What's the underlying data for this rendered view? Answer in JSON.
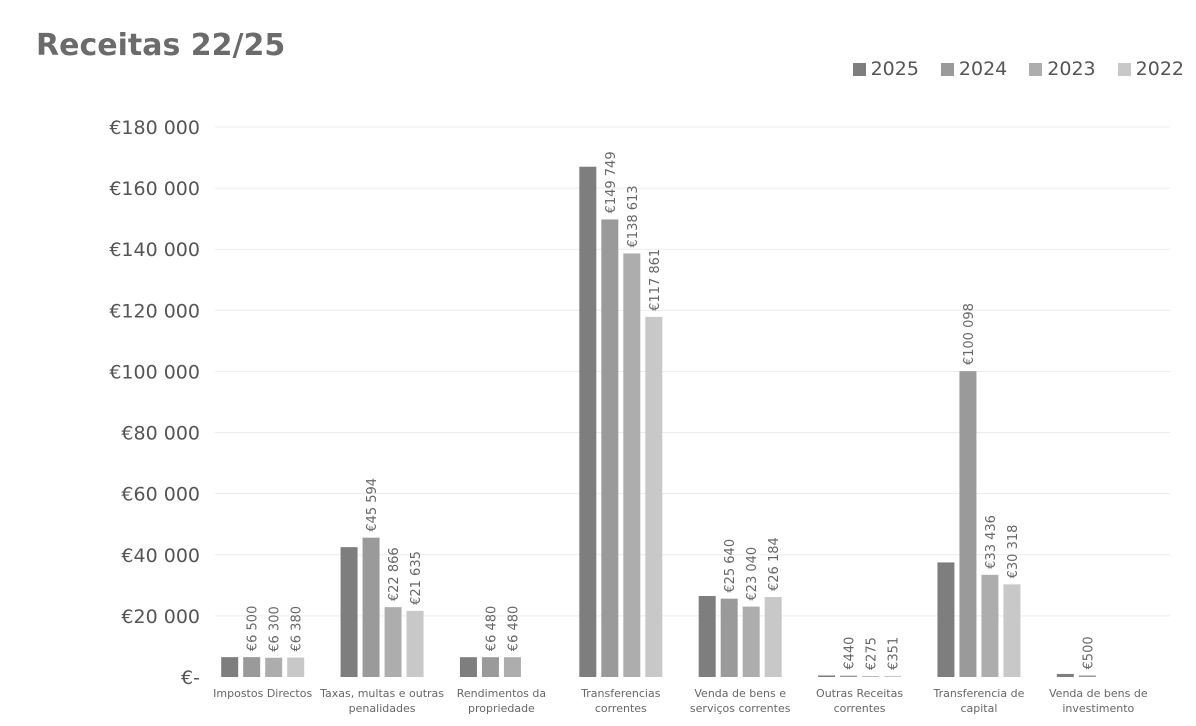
{
  "chart_data": {
    "type": "bar",
    "title": "Receitas 22/25",
    "xlabel": "",
    "ylabel": "",
    "ylim": [
      0,
      180000
    ],
    "yticks": [
      0,
      20000,
      40000,
      60000,
      80000,
      100000,
      120000,
      140000,
      160000,
      180000
    ],
    "ytick_labels": [
      "€-",
      "€20 000",
      "€40 000",
      "€60 000",
      "€80 000",
      "€100 000",
      "€120 000",
      "€140 000",
      "€160 000",
      "€180 000"
    ],
    "grid": true,
    "legend_position": "top-right",
    "categories": [
      [
        "Impostos Directos"
      ],
      [
        "Taxas, multas e outras",
        "penalidades"
      ],
      [
        "Rendimentos da",
        "propriedade"
      ],
      [
        "Transferencias",
        "correntes"
      ],
      [
        "Venda de bens e",
        "serviços correntes"
      ],
      [
        "Outras Receitas",
        "correntes"
      ],
      [
        "Transferencia de",
        "capital"
      ],
      [
        "Venda de bens de",
        "investimento"
      ]
    ],
    "series": [
      {
        "name": "2025",
        "color": "#7e7e7e",
        "values": [
          6500,
          42500,
          6480,
          167000,
          26500,
          500,
          37500,
          1000
        ],
        "labels": [
          "",
          "",
          "",
          "",
          "",
          "",
          "",
          ""
        ]
      },
      {
        "name": "2024",
        "color": "#9a9a9a",
        "values": [
          6500,
          45594,
          6480,
          149749,
          25640,
          440,
          100098,
          500
        ],
        "labels": [
          "€6 500",
          "€45 594",
          "€6 480",
          "€149 749",
          "€25 640",
          "€440",
          "€100 098",
          "€500"
        ]
      },
      {
        "name": "2023",
        "color": "#adadad",
        "values": [
          6300,
          22866,
          6480,
          138613,
          23040,
          275,
          33436,
          0
        ],
        "labels": [
          "€6 300",
          "€22 866",
          "€6 480",
          "€138 613",
          "€23 040",
          "€275",
          "€33 436",
          ""
        ]
      },
      {
        "name": "2022",
        "color": "#c8c8c8",
        "values": [
          6380,
          21635,
          0,
          117861,
          26184,
          351,
          30318,
          0
        ],
        "labels": [
          "€6 380",
          "€21 635",
          "",
          "€117 861",
          "€26 184",
          "€351",
          "€30 318",
          ""
        ]
      }
    ]
  }
}
